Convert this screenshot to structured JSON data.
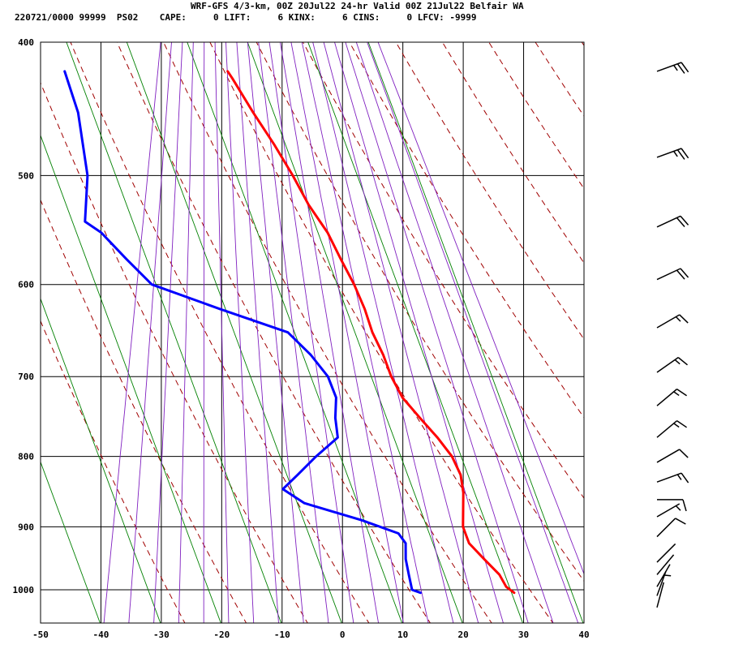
{
  "header": {
    "title": "WRF-GFS 4/3-km, 00Z 20Jul22 24-hr Valid 00Z 21Jul22 Belfair WA",
    "info": "220721/0000 99999  PS02    CAPE:     0 LIFT:     6 KINX:     6 CINS:     0 LFCV: -9999"
  },
  "chart_data": {
    "type": "line",
    "subtype": "skew-T log-P sounding",
    "xlabel": "",
    "ylabel": "",
    "x_ticks": [
      "-50",
      "-40",
      "-30",
      "-20",
      "-10",
      "0",
      "10",
      "20",
      "30",
      "40"
    ],
    "p_ticks": [
      "400",
      "500",
      "600",
      "700",
      "800",
      "900",
      "1000"
    ],
    "xlim": [
      -50,
      40
    ],
    "plim": [
      1045,
      400
    ],
    "grid": true,
    "colors": {
      "temperature": "#ff0000",
      "dewpoint": "#0000ff",
      "dry_adiabat": "#a00000",
      "moist_adiabat": "#8020c0",
      "mixing_ratio": "#008000",
      "grid": "#000000",
      "barb": "#000000"
    },
    "series": [
      {
        "name": "temperature",
        "points": [
          {
            "p": 1005,
            "t": 27.5
          },
          {
            "p": 995,
            "t": 26.0
          },
          {
            "p": 975,
            "t": 24.5
          },
          {
            "p": 950,
            "t": 21.5
          },
          {
            "p": 925,
            "t": 18.5
          },
          {
            "p": 900,
            "t": 17.0
          },
          {
            "p": 875,
            "t": 16.5
          },
          {
            "p": 850,
            "t": 16.0
          },
          {
            "p": 825,
            "t": 15.0
          },
          {
            "p": 800,
            "t": 13.0
          },
          {
            "p": 775,
            "t": 10.0
          },
          {
            "p": 750,
            "t": 6.5
          },
          {
            "p": 725,
            "t": 3.0
          },
          {
            "p": 700,
            "t": 0.5
          },
          {
            "p": 675,
            "t": -1.5
          },
          {
            "p": 650,
            "t": -4.0
          },
          {
            "p": 625,
            "t": -6.0
          },
          {
            "p": 600,
            "t": -8.5
          },
          {
            "p": 575,
            "t": -11.5
          },
          {
            "p": 550,
            "t": -14.5
          },
          {
            "p": 525,
            "t": -18.5
          },
          {
            "p": 500,
            "t": -22.0
          },
          {
            "p": 475,
            "t": -26.0
          },
          {
            "p": 450,
            "t": -30.5
          },
          {
            "p": 425,
            "t": -35.0
          },
          {
            "p": 420,
            "t": -36.0
          }
        ]
      },
      {
        "name": "dewpoint",
        "points": [
          {
            "p": 1005,
            "t": 12.0
          },
          {
            "p": 1000,
            "t": 10.5
          },
          {
            "p": 975,
            "t": 9.5
          },
          {
            "p": 950,
            "t": 8.5
          },
          {
            "p": 925,
            "t": 8.0
          },
          {
            "p": 910,
            "t": 6.5
          },
          {
            "p": 890,
            "t": 0.0
          },
          {
            "p": 865,
            "t": -10.0
          },
          {
            "p": 845,
            "t": -14.0
          },
          {
            "p": 825,
            "t": -12.0
          },
          {
            "p": 800,
            "t": -9.5
          },
          {
            "p": 775,
            "t": -6.5
          },
          {
            "p": 750,
            "t": -7.5
          },
          {
            "p": 725,
            "t": -8.0
          },
          {
            "p": 700,
            "t": -10.0
          },
          {
            "p": 675,
            "t": -13.5
          },
          {
            "p": 650,
            "t": -18.0
          },
          {
            "p": 625,
            "t": -30.0
          },
          {
            "p": 600,
            "t": -42.0
          },
          {
            "p": 575,
            "t": -47.0
          },
          {
            "p": 550,
            "t": -52.0
          },
          {
            "p": 540,
            "t": -55.0
          },
          {
            "p": 500,
            "t": -56.0
          },
          {
            "p": 450,
            "t": -59.5
          },
          {
            "p": 420,
            "t": -63.0
          }
        ]
      }
    ],
    "wind_barbs": [
      {
        "p": 420,
        "dir": 250,
        "spd": 25
      },
      {
        "p": 485,
        "dir": 250,
        "spd": 25
      },
      {
        "p": 545,
        "dir": 245,
        "spd": 20
      },
      {
        "p": 595,
        "dir": 245,
        "spd": 20
      },
      {
        "p": 645,
        "dir": 240,
        "spd": 15
      },
      {
        "p": 695,
        "dir": 235,
        "spd": 15
      },
      {
        "p": 735,
        "dir": 230,
        "spd": 15
      },
      {
        "p": 775,
        "dir": 230,
        "spd": 15
      },
      {
        "p": 808,
        "dir": 240,
        "spd": 10
      },
      {
        "p": 835,
        "dir": 250,
        "spd": 15
      },
      {
        "p": 860,
        "dir": 270,
        "spd": 10
      },
      {
        "p": 885,
        "dir": 240,
        "spd": 5
      },
      {
        "p": 915,
        "dir": 225,
        "spd": 10
      },
      {
        "p": 955,
        "dir": 225,
        "spd": 0
      },
      {
        "p": 975,
        "dir": 220,
        "spd": 0
      },
      {
        "p": 995,
        "dir": 210,
        "spd": 0
      },
      {
        "p": 1010,
        "dir": 200,
        "spd": 5
      },
      {
        "p": 1030,
        "dir": 195,
        "spd": 0
      }
    ]
  }
}
